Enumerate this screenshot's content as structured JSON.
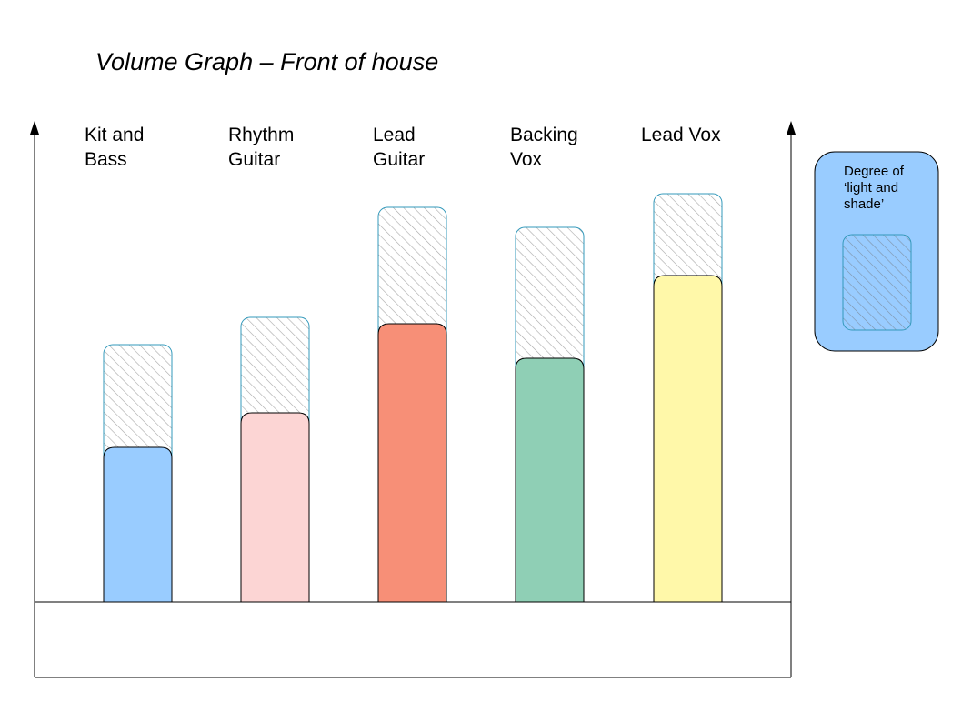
{
  "chart_data": {
    "type": "bar",
    "title": "Volume Graph – Front of house",
    "categories": [
      {
        "label_lines": [
          "Kit and",
          "Bass"
        ],
        "base": 170,
        "range_top": 283,
        "color": "#99ccff"
      },
      {
        "label_lines": [
          "Rhythm",
          "Guitar"
        ],
        "base": 208,
        "range_top": 313,
        "color": "#fcd5d4"
      },
      {
        "label_lines": [
          "Lead",
          "Guitar"
        ],
        "base": 306,
        "range_top": 434,
        "color": "#f78f77"
      },
      {
        "label_lines": [
          "Backing",
          "Vox"
        ],
        "base": 268,
        "range_top": 412,
        "color": "#8fcfb5"
      },
      {
        "label_lines": [
          "Lead Vox"
        ],
        "base": 359,
        "range_top": 449,
        "color": "#fff8a9"
      }
    ],
    "legend": {
      "label_lines": [
        "Degree of",
        "‘light and",
        "shade’"
      ],
      "box_color": "#99ccff",
      "placement": "right"
    },
    "grid": false,
    "hatch_stroke": "#aaaaaa",
    "range_outline": "#3399bb"
  }
}
